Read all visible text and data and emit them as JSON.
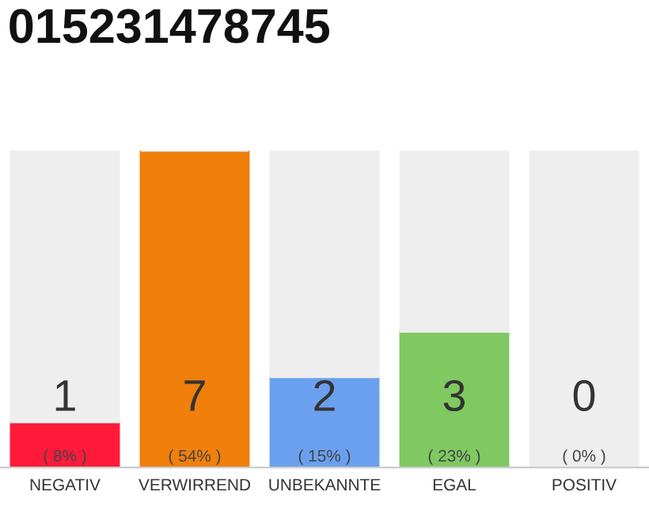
{
  "chart_data": {
    "type": "bar",
    "title": "015231478745",
    "stacked": true,
    "categories": [
      "NEGATIV",
      "VERWIRREND",
      "UNBEKANNTE",
      "EGAL",
      "POSITIV"
    ],
    "series": [
      {
        "colors": [
          "#ff1a3a",
          "#f07f0c",
          "#6aa0ee",
          "#80c860",
          "#eeeeee"
        ],
        "values": [
          1,
          7,
          2,
          3,
          0
        ],
        "value_labels": [
          "1\n( 8% )",
          "7\n( 54% )",
          "2\n( 15% )",
          "3\n( 23% )",
          "0\n( 0% )"
        ]
      },
      {
        "color": "#eeeeee",
        "values": [
          6,
          0,
          5,
          4,
          7
        ]
      }
    ],
    "grid": false,
    "legend": false,
    "tick_labels": "x"
  }
}
